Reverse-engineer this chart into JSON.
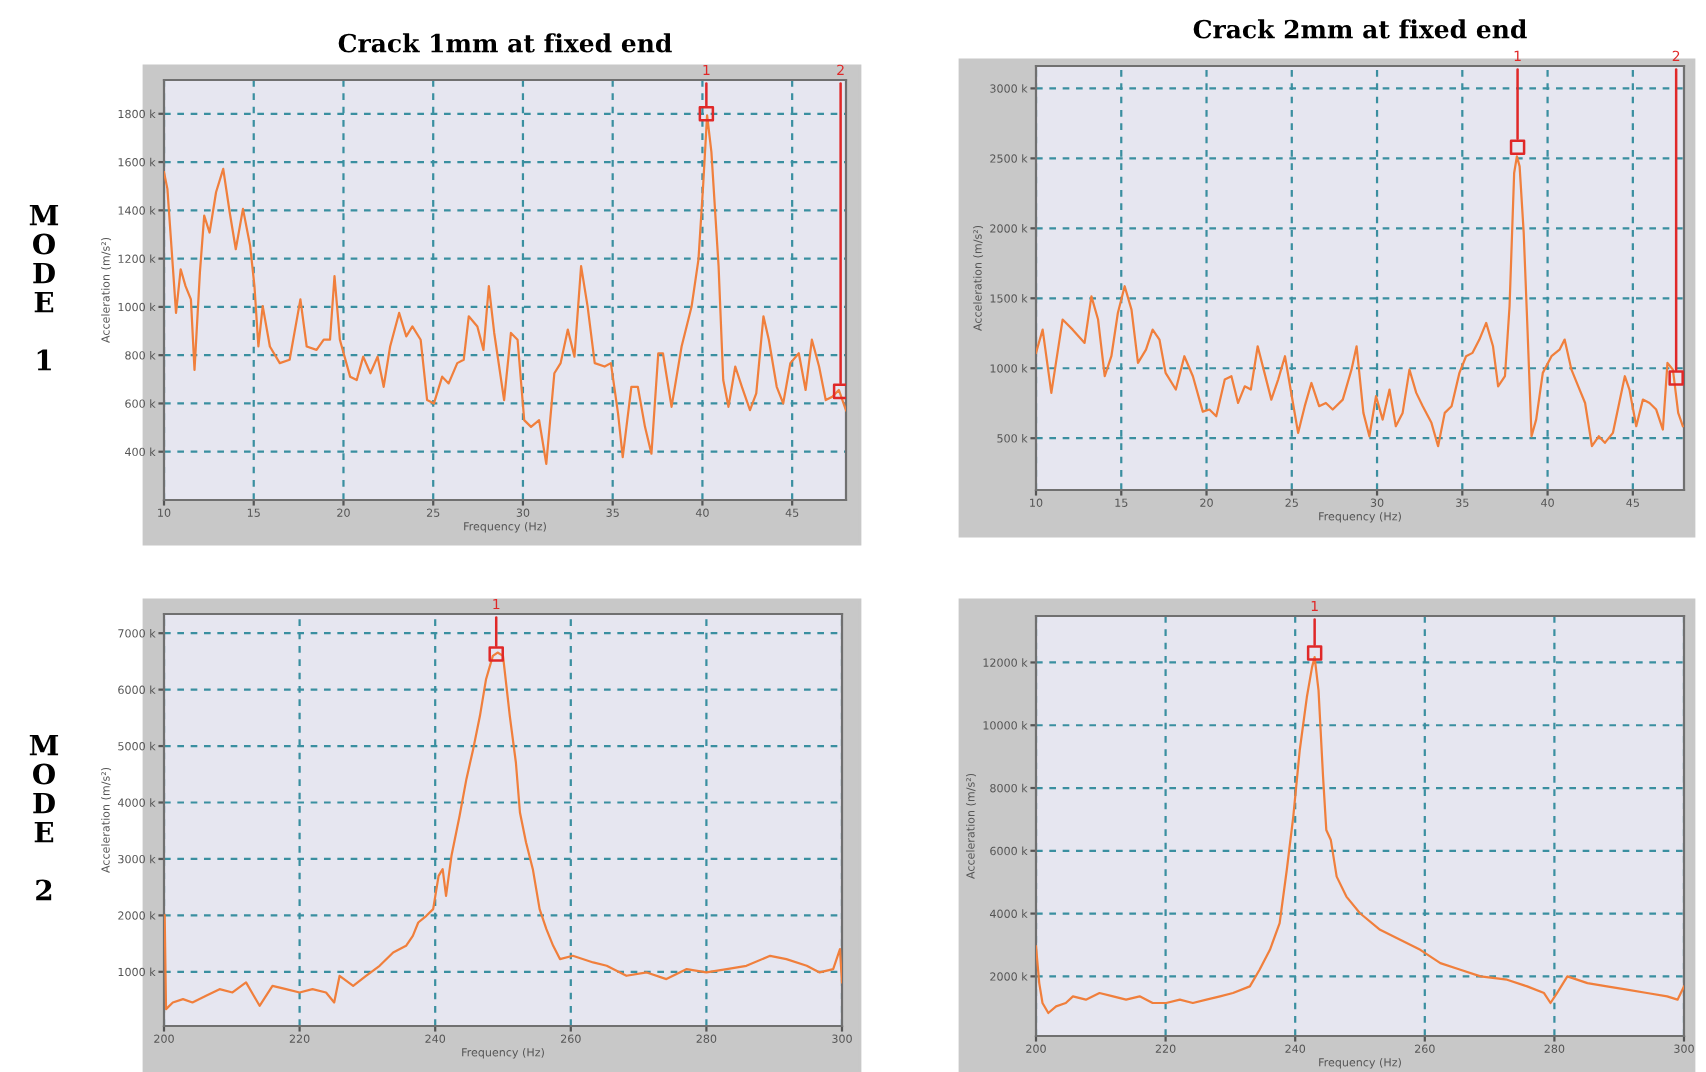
{
  "chart_data": [
    {
      "type": "line",
      "title": "Crack 1mm at fixed end",
      "xlabel": "Frequency (Hz)",
      "ylabel": "Acceleration (m/s²)",
      "annotations": [
        "MODE 1",
        {
          "text": "1",
          "x": 40.22,
          "y": 1800
        },
        {
          "text": "2",
          "x": 47.7,
          "y": 650
        }
      ],
      "grid": true,
      "xlim": [
        10,
        48
      ],
      "xticks": [
        10,
        15,
        20,
        25,
        30,
        35,
        40,
        45
      ],
      "ylim": [
        200,
        1940
      ],
      "yticks": [
        {
          "value": 400,
          "label": "400 k"
        },
        {
          "value": 600,
          "label": "600 k"
        },
        {
          "value": 800,
          "label": "800 k"
        },
        {
          "value": 1000,
          "label": "1000 k"
        },
        {
          "value": 1200,
          "label": "1200 k"
        },
        {
          "value": 1400,
          "label": "1400 k"
        },
        {
          "value": 1600,
          "label": "1600 k"
        },
        {
          "value": 1800,
          "label": "1800 k"
        }
      ],
      "series": [
        {
          "type": "line",
          "color": "#f07f3c",
          "x": [
            10,
            10.19,
            10.49,
            10.67,
            10.93,
            11.2,
            11.5,
            11.7,
            12.0,
            12.24,
            12.54,
            12.9,
            13.3,
            13.66,
            14.0,
            14.4,
            14.8,
            15.04,
            15.26,
            15.5,
            15.9,
            16.45,
            17.0,
            17.6,
            17.95,
            18.5,
            18.9,
            19.25,
            19.5,
            19.8,
            20.37,
            20.74,
            21.1,
            21.5,
            21.9,
            22.24,
            22.6,
            23.1,
            23.5,
            23.84,
            24.3,
            24.66,
            25.04,
            25.5,
            25.86,
            26.34,
            26.7,
            26.98,
            27.46,
            27.8,
            28.1,
            28.4,
            28.95,
            29.33,
            29.7,
            30.07,
            30.45,
            30.9,
            31.3,
            31.75,
            32.1,
            32.5,
            32.87,
            33.24,
            33.6,
            34.0,
            34.55,
            34.9,
            35.3,
            35.56,
            36.04,
            36.4,
            36.8,
            37.16,
            37.54,
            37.8,
            38.28,
            38.84,
            39.4,
            39.78,
            40.04,
            40.26,
            40.5,
            40.9,
            41.16,
            41.45,
            41.83,
            42.2,
            42.65,
            43.0,
            43.4,
            43.7,
            44.14,
            44.5,
            44.9,
            45.37,
            45.75,
            46.1,
            46.5,
            46.87,
            47.24,
            47.6,
            48.0
          ],
          "values": [
            1558,
            1489,
            1169,
            975,
            1156,
            1086,
            1031,
            739,
            1142,
            1378,
            1308,
            1475,
            1572,
            1392,
            1239,
            1406,
            1253,
            1086,
            836,
            1003,
            836,
            767,
            781,
            1031,
            836,
            822,
            864,
            864,
            1128,
            864,
            711,
            697,
            794,
            725,
            794,
            669,
            836,
            975,
            878,
            919,
            864,
            614,
            600,
            711,
            683,
            767,
            781,
            961,
            919,
            822,
            1086,
            892,
            614,
            892,
            864,
            531,
            503,
            531,
            350,
            725,
            767,
            906,
            794,
            1169,
            1003,
            767,
            753,
            767,
            558,
            378,
            669,
            669,
            503,
            392,
            808,
            808,
            586,
            836,
            1003,
            1197,
            1503,
            1794,
            1642,
            1169,
            697,
            586,
            753,
            669,
            572,
            642,
            961,
            864,
            669,
            600,
            767,
            808,
            656,
            864,
            753,
            614,
            628,
            656,
            572
          ]
        },
        {
          "type": "scatter",
          "marker": "square",
          "color": "#e02828",
          "x": [
            40.22,
            47.7
          ],
          "values": [
            1800,
            650
          ]
        }
      ]
    },
    {
      "type": "line",
      "title": "Crack 2mm at fixed end",
      "xlabel": "Frequency (Hz)",
      "ylabel": "Acceleration (m/s²)",
      "annotations": [
        {
          "text": "1",
          "x": 38.24,
          "y": 2580
        },
        {
          "text": "2",
          "x": 47.54,
          "y": 930
        }
      ],
      "grid": true,
      "xlim": [
        10,
        48
      ],
      "xticks": [
        10,
        15,
        20,
        25,
        30,
        35,
        40,
        45
      ],
      "ylim": [
        130,
        3160
      ],
      "yticks": [
        {
          "value": 500,
          "label": "500 k"
        },
        {
          "value": 1000,
          "label": "1000 k"
        },
        {
          "value": 1500,
          "label": "1500 k"
        },
        {
          "value": 2000,
          "label": "2000 k"
        },
        {
          "value": 2500,
          "label": "2500 k"
        },
        {
          "value": 3000,
          "label": "3000 k"
        }
      ],
      "series": [
        {
          "type": "line",
          "color": "#f07f3c",
          "x": [
            10,
            10.39,
            10.9,
            11.56,
            12.15,
            12.85,
            13.25,
            13.64,
            14.03,
            14.42,
            14.8,
            15.2,
            15.6,
            15.98,
            16.45,
            16.84,
            17.24,
            17.6,
            18.2,
            18.7,
            19.2,
            19.78,
            20.17,
            20.57,
            21.07,
            21.46,
            21.85,
            22.24,
            22.6,
            23.0,
            23.4,
            23.8,
            24.2,
            24.6,
            25.0,
            25.37,
            25.76,
            26.15,
            26.6,
            27.0,
            27.4,
            27.99,
            28.5,
            28.8,
            29.2,
            29.55,
            29.94,
            30.33,
            30.73,
            31.1,
            31.5,
            31.9,
            32.3,
            32.68,
            33.19,
            33.58,
            33.97,
            34.37,
            34.83,
            35.22,
            35.6,
            36.0,
            36.4,
            36.8,
            37.1,
            37.5,
            37.77,
            38.04,
            38.2,
            38.36,
            38.6,
            38.8,
            39.06,
            39.33,
            39.72,
            40.23,
            40.7,
            41.0,
            41.4,
            41.8,
            42.2,
            42.6,
            43.0,
            43.36,
            43.83,
            44.2,
            44.53,
            44.8,
            45.2,
            45.59,
            45.98,
            46.37,
            46.76,
            47.03,
            47.35,
            47.66,
            47.93
          ],
          "values": [
            1110,
            1276,
            824,
            1348,
            1276,
            1181,
            1514,
            1348,
            943,
            1086,
            1395,
            1586,
            1419,
            1038,
            1133,
            1276,
            1205,
            967,
            848,
            1086,
            943,
            690,
            705,
            657,
            919,
            943,
            752,
            871,
            848,
            1157,
            967,
            776,
            919,
            1086,
            800,
            538,
            729,
            895,
            729,
            752,
            705,
            776,
            990,
            1157,
            681,
            514,
            800,
            633,
            848,
            586,
            681,
            990,
            824,
            729,
            610,
            443,
            681,
            729,
            967,
            1086,
            1110,
            1205,
            1324,
            1157,
            871,
            943,
            1443,
            2395,
            2514,
            2443,
            1967,
            1348,
            514,
            633,
            967,
            1086,
            1133,
            1205,
            990,
            871,
            752,
            443,
            514,
            467,
            538,
            752,
            943,
            848,
            586,
            776,
            752,
            705,
            562,
            1038,
            990,
            681,
            586
          ]
        },
        {
          "type": "scatter",
          "marker": "square",
          "color": "#e02828",
          "x": [
            38.24,
            47.54
          ],
          "values": [
            2580,
            930
          ]
        }
      ]
    },
    {
      "type": "line",
      "xlabel": "Frequency (Hz)",
      "ylabel": "Acceleration (m/s²)",
      "annotations": [
        "MODE 2",
        {
          "text": "1",
          "x": 249.0,
          "y": 6630
        }
      ],
      "grid": true,
      "xlim": [
        200,
        300
      ],
      "xticks": [
        200,
        220,
        240,
        260,
        280,
        300
      ],
      "ylim": [
        40,
        7340
      ],
      "yticks": [
        {
          "value": 1000,
          "label": "1000 k"
        },
        {
          "value": 2000,
          "label": "2000 k"
        },
        {
          "value": 3000,
          "label": "3000 k"
        },
        {
          "value": 4000,
          "label": "4000 k"
        },
        {
          "value": 5000,
          "label": "5000 k"
        },
        {
          "value": 6000,
          "label": "6000 k"
        },
        {
          "value": 7000,
          "label": "7000 k"
        }
      ],
      "series": [
        {
          "type": "line",
          "color": "#f07f3c",
          "x": [
            200.1,
            200.3,
            201.3,
            202.8,
            204.2,
            206.2,
            208.2,
            210.1,
            212.1,
            214.1,
            216.0,
            218.0,
            220.0,
            221.9,
            223.9,
            225.1,
            225.9,
            227.9,
            229.8,
            231.8,
            233.8,
            235.7,
            236.7,
            237.5,
            238.7,
            239.7,
            240.5,
            241.1,
            241.6,
            242.4,
            243.6,
            244.6,
            245.6,
            246.6,
            247.5,
            248.5,
            249.2,
            250.0,
            251.0,
            251.9,
            252.5,
            253.4,
            254.4,
            255.4,
            256.4,
            257.4,
            258.4,
            260.3,
            263.3,
            265.3,
            268.2,
            271.2,
            274.1,
            277.1,
            280.0,
            283.0,
            285.9,
            289.4,
            291.8,
            294.8,
            296.7,
            298.7,
            299.7,
            300
          ],
          "values": [
            2000,
            339,
            457,
            516,
            457,
            575,
            693,
            634,
            812,
            398,
            752,
            693,
            634,
            693,
            634,
            457,
            930,
            752,
            930,
            1107,
            1343,
            1461,
            1638,
            1874,
            1993,
            2111,
            2701,
            2819,
            2347,
            3055,
            3764,
            4414,
            4945,
            5536,
            6185,
            6598,
            6657,
            6598,
            5536,
            4709,
            3823,
            3292,
            2819,
            2111,
            1756,
            1461,
            1225,
            1284,
            1166,
            1107,
            930,
            989,
            871,
            1048,
            989,
            1048,
            1107,
            1284,
            1225,
            1107,
            989,
            1048,
            1402,
            812
          ]
        },
        {
          "type": "scatter",
          "marker": "square",
          "color": "#e02828",
          "x": [
            249.0
          ],
          "values": [
            6630
          ]
        }
      ]
    },
    {
      "type": "line",
      "xlabel": "Frequency (Hz)",
      "ylabel": "Acceleration (m/s²)",
      "grid": true,
      "annotations": [
        {
          "text": "1",
          "x": 243.0,
          "y": 12300
        }
      ],
      "xlim": [
        200,
        300
      ],
      "xticks": [
        200,
        220,
        240,
        260,
        280,
        300
      ],
      "ylim": [
        100,
        13480
      ],
      "yticks": [
        {
          "value": 2000,
          "label": "2000 k"
        },
        {
          "value": 4000,
          "label": "4000 k"
        },
        {
          "value": 6000,
          "label": "6000 k"
        },
        {
          "value": 8000,
          "label": "8000 k"
        },
        {
          "value": 10000,
          "label": "10000 k"
        },
        {
          "value": 12000,
          "label": "12000 k"
        }
      ],
      "series": [
        {
          "type": "line",
          "color": "#f07f3c",
          "x": [
            200,
            200.5,
            201.0,
            201.9,
            203.1,
            204.6,
            205.7,
            207.7,
            209.8,
            211.9,
            213.9,
            216.0,
            218.0,
            220.1,
            222.2,
            224.2,
            226.3,
            228.4,
            230.4,
            233.0,
            234.5,
            236.1,
            237.6,
            238.7,
            239.7,
            240.7,
            241.8,
            242.6,
            243.0,
            243.6,
            244.3,
            244.8,
            245.5,
            246.4,
            247.9,
            250.0,
            253.1,
            256.2,
            259.3,
            262.4,
            265.5,
            268.6,
            272.7,
            275.8,
            278.4,
            279.4,
            280.4,
            282.0,
            285.1,
            288.1,
            291.2,
            294.3,
            297.4,
            299.0,
            300
          ],
          "values": [
            2952,
            1786,
            1151,
            833,
            1045,
            1151,
            1363,
            1257,
            1469,
            1363,
            1257,
            1363,
            1151,
            1151,
            1257,
            1151,
            1257,
            1363,
            1469,
            1680,
            2210,
            2846,
            3694,
            5389,
            7084,
            9203,
            10898,
            11852,
            12170,
            11110,
            8355,
            6660,
            6342,
            5177,
            4541,
            4011,
            3482,
            3164,
            2846,
            2422,
            2210,
            2000,
            1893,
            1680,
            1469,
            1151,
            1469,
            2000,
            1786,
            1680,
            1575,
            1469,
            1363,
            1257,
            1680
          ]
        },
        {
          "type": "scatter",
          "marker": "square",
          "color": "#e02828",
          "x": [
            243.0
          ],
          "values": [
            12300
          ]
        }
      ]
    }
  ]
}
